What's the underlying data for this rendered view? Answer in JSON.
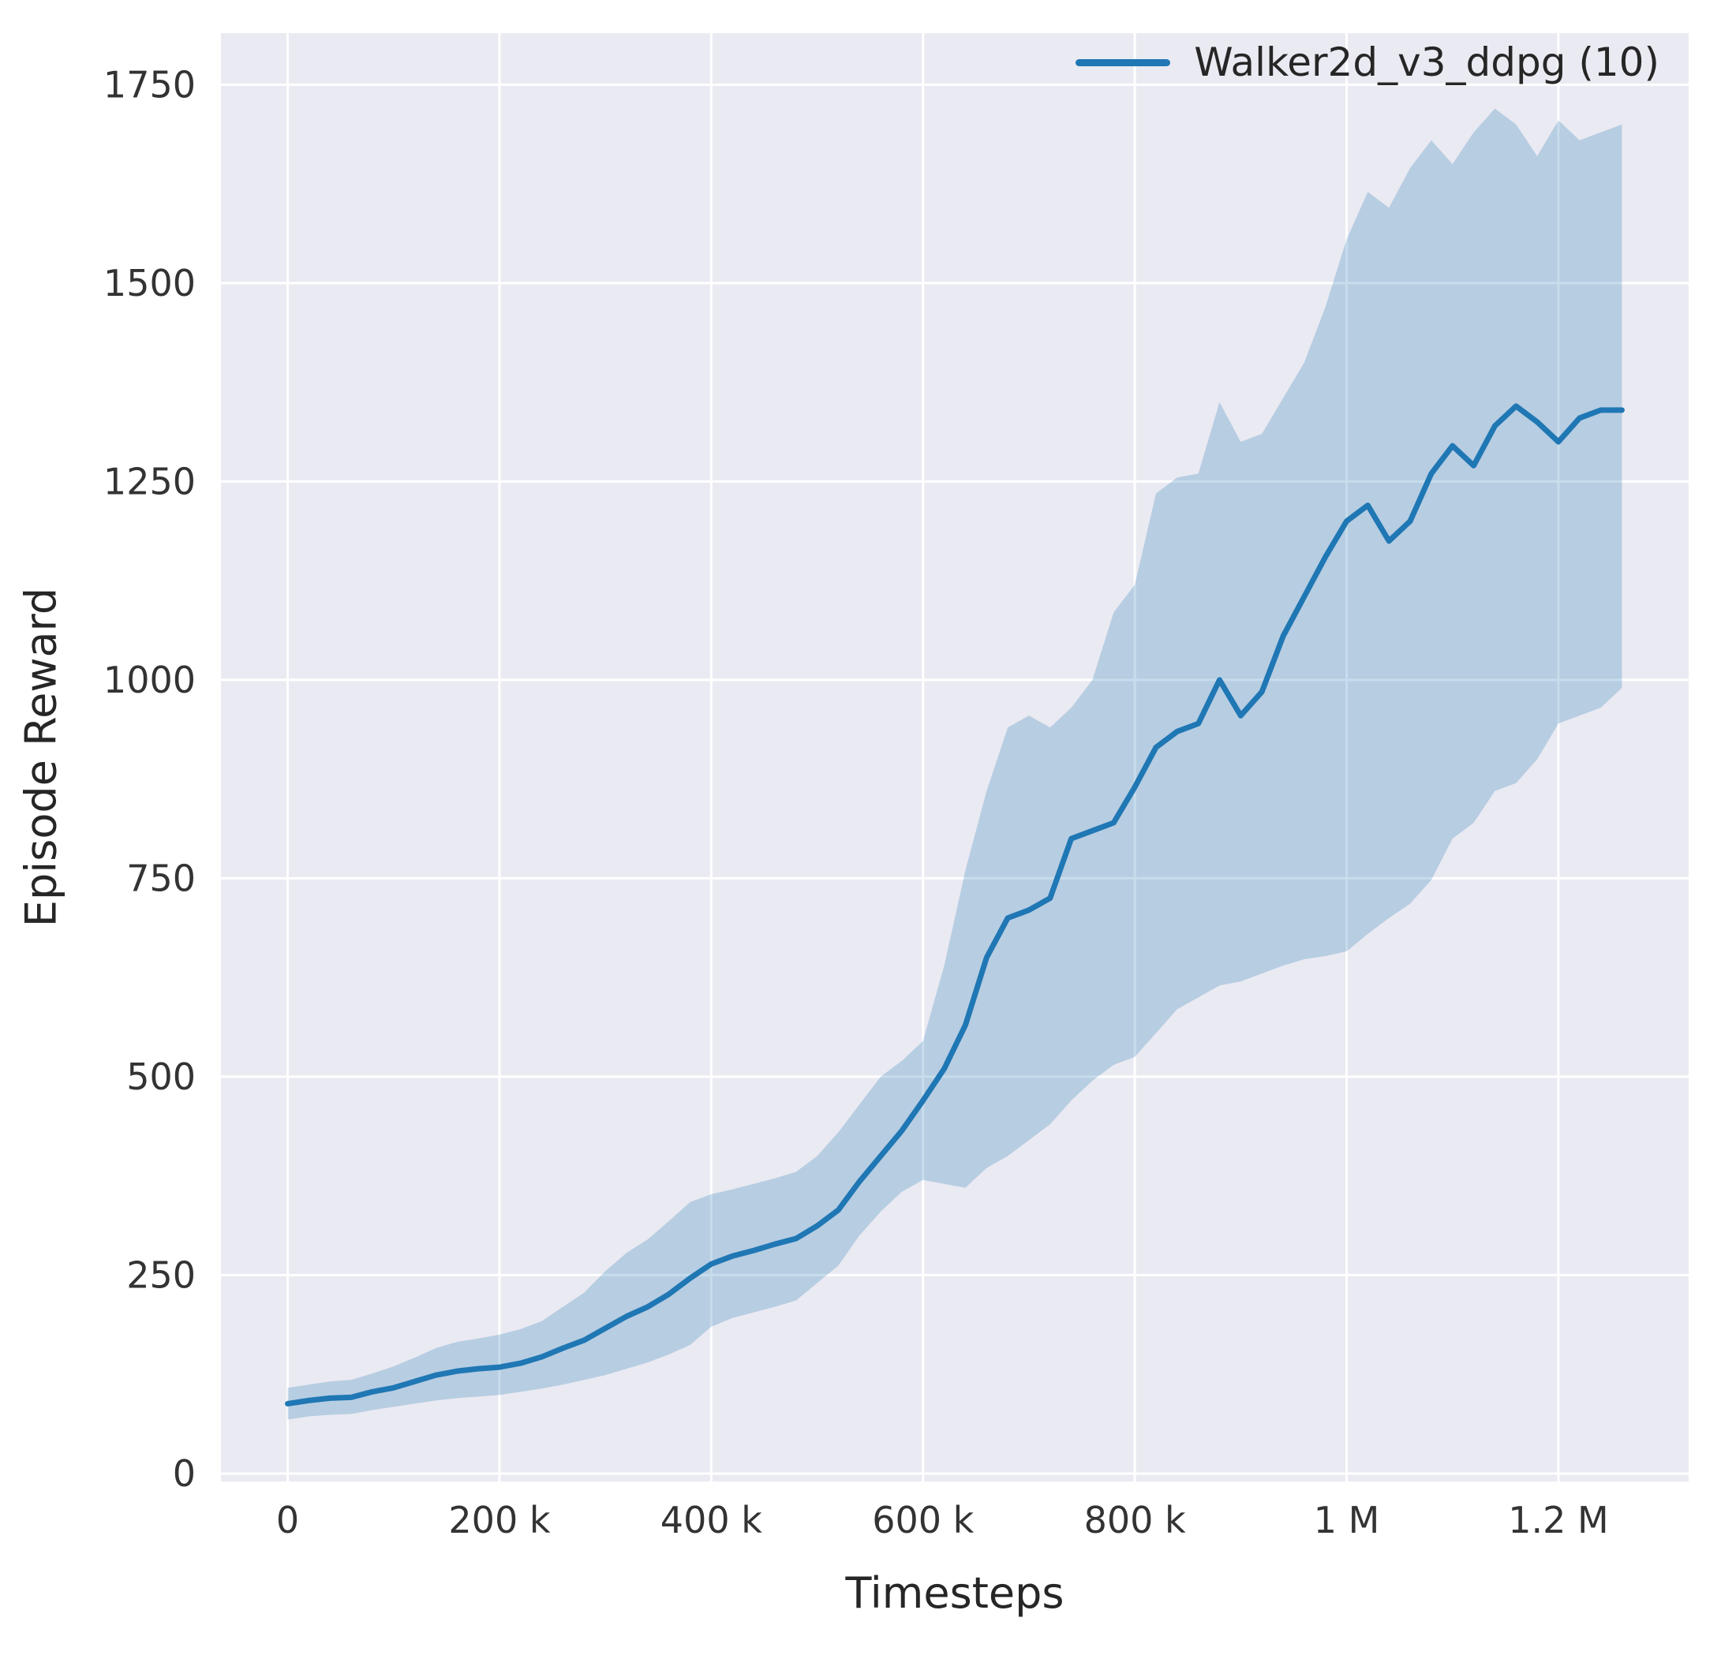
{
  "chart_data": {
    "type": "line",
    "title": "",
    "xlabel": "Timesteps",
    "ylabel": "Episode Reward",
    "x_unit": "timesteps, x values listed in thousands",
    "xlim": [
      -63,
      1323
    ],
    "ylim": [
      -10,
      1815
    ],
    "grid": true,
    "legend_position": "upper right",
    "colors": {
      "plot_bg": "#eaeaf2",
      "grid": "#ffffff",
      "text": "#333333"
    },
    "xticks": [
      {
        "v": 0,
        "label": "0"
      },
      {
        "v": 200,
        "label": "200 k"
      },
      {
        "v": 400,
        "label": "400 k"
      },
      {
        "v": 600,
        "label": "600 k"
      },
      {
        "v": 800,
        "label": "800 k"
      },
      {
        "v": 1000,
        "label": "1 M"
      },
      {
        "v": 1200,
        "label": "1.2 M"
      }
    ],
    "yticks": [
      {
        "v": 0,
        "label": "0"
      },
      {
        "v": 250,
        "label": "250"
      },
      {
        "v": 500,
        "label": "500"
      },
      {
        "v": 750,
        "label": "750"
      },
      {
        "v": 1000,
        "label": "1000"
      },
      {
        "v": 1250,
        "label": "1250"
      },
      {
        "v": 1500,
        "label": "1500"
      },
      {
        "v": 1750,
        "label": "1750"
      }
    ],
    "series": [
      {
        "name": "Walker2d_v3_ddpg (10)",
        "color": "#1f77b4",
        "band_opacity": 0.25,
        "x": [
          0,
          20,
          40,
          60,
          80,
          100,
          120,
          140,
          160,
          180,
          200,
          220,
          240,
          260,
          280,
          300,
          320,
          340,
          360,
          380,
          400,
          420,
          440,
          460,
          480,
          500,
          520,
          540,
          560,
          580,
          600,
          620,
          640,
          660,
          680,
          700,
          720,
          740,
          760,
          780,
          800,
          820,
          840,
          860,
          880,
          900,
          920,
          940,
          960,
          980,
          1000,
          1020,
          1040,
          1060,
          1080,
          1100,
          1120,
          1140,
          1160,
          1180,
          1200,
          1220,
          1240,
          1260
        ],
        "mean": [
          88,
          92,
          95,
          96,
          103,
          108,
          116,
          124,
          129,
          132,
          134,
          139,
          147,
          158,
          168,
          183,
          198,
          210,
          226,
          246,
          264,
          274,
          281,
          289,
          296,
          312,
          332,
          368,
          400,
          432,
          470,
          510,
          565,
          650,
          700,
          710,
          725,
          800,
          810,
          820,
          865,
          915,
          935,
          945,
          1000,
          955,
          985,
          1055,
          1105,
          1155,
          1200,
          1220,
          1175,
          1200,
          1260,
          1295,
          1270,
          1320,
          1345,
          1325,
          1300,
          1330,
          1340,
          1340
        ],
        "lower": [
          68,
          72,
          74,
          75,
          80,
          84,
          88,
          92,
          95,
          97,
          99,
          103,
          107,
          112,
          118,
          124,
          132,
          140,
          150,
          162,
          185,
          196,
          203,
          210,
          218,
          240,
          262,
          300,
          330,
          355,
          370,
          365,
          360,
          385,
          400,
          420,
          440,
          470,
          495,
          515,
          525,
          555,
          585,
          600,
          615,
          620,
          630,
          640,
          648,
          652,
          658,
          680,
          700,
          718,
          748,
          800,
          820,
          860,
          870,
          900,
          945,
          955,
          965,
          990
        ],
        "upper": [
          108,
          112,
          116,
          118,
          126,
          135,
          146,
          158,
          166,
          170,
          175,
          182,
          192,
          210,
          228,
          255,
          278,
          295,
          318,
          342,
          352,
          358,
          365,
          372,
          380,
          400,
          430,
          465,
          500,
          520,
          545,
          640,
          760,
          860,
          940,
          955,
          940,
          965,
          1000,
          1085,
          1120,
          1235,
          1255,
          1260,
          1350,
          1300,
          1310,
          1355,
          1400,
          1470,
          1555,
          1615,
          1595,
          1645,
          1680,
          1650,
          1690,
          1720,
          1700,
          1660,
          1705,
          1680,
          1690,
          1700
        ]
      }
    ]
  }
}
